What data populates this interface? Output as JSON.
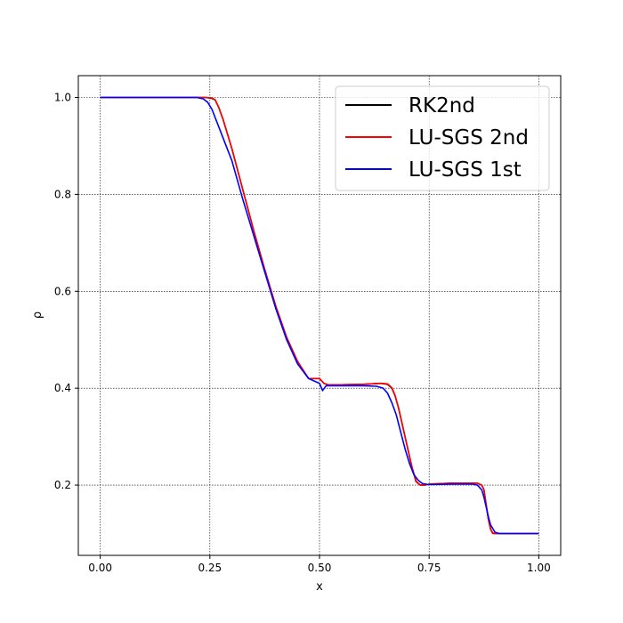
{
  "chart_data": {
    "type": "line",
    "title": "",
    "xlabel": "x",
    "ylabel": "ρ",
    "xlim": [
      -0.05,
      1.05
    ],
    "ylim": [
      0.055,
      1.045
    ],
    "xticks": [
      0.0,
      0.25,
      0.5,
      0.75,
      1.0
    ],
    "xtick_labels": [
      "0.00",
      "0.25",
      "0.50",
      "0.75",
      "1.00"
    ],
    "yticks": [
      0.2,
      0.4,
      0.6,
      0.8,
      1.0
    ],
    "ytick_labels": [
      "0.2",
      "0.4",
      "0.6",
      "0.8",
      "1.0"
    ],
    "grid": true,
    "legend_position": "top-right",
    "series": [
      {
        "name": "RK2nd",
        "color": "#000000",
        "x": [
          0.0,
          0.24,
          0.255,
          0.262,
          0.27,
          0.28,
          0.3,
          0.325,
          0.35,
          0.375,
          0.4,
          0.425,
          0.45,
          0.475,
          0.5,
          0.505,
          0.51,
          0.52,
          0.55,
          0.6,
          0.64,
          0.655,
          0.665,
          0.672,
          0.68,
          0.69,
          0.7,
          0.71,
          0.72,
          0.73,
          0.74,
          0.75,
          0.8,
          0.86,
          0.87,
          0.875,
          0.88,
          0.885,
          0.89,
          0.895,
          0.9,
          0.91,
          1.0
        ],
        "y": [
          1.0,
          1.0,
          0.998,
          0.995,
          0.98,
          0.955,
          0.895,
          0.81,
          0.725,
          0.645,
          0.57,
          0.505,
          0.455,
          0.42,
          0.42,
          0.415,
          0.41,
          0.407,
          0.407,
          0.408,
          0.41,
          0.408,
          0.4,
          0.385,
          0.36,
          0.32,
          0.28,
          0.24,
          0.208,
          0.2,
          0.2,
          0.202,
          0.204,
          0.204,
          0.2,
          0.19,
          0.16,
          0.13,
          0.11,
          0.101,
          0.1,
          0.1,
          0.1
        ]
      },
      {
        "name": "LU-SGS 2nd",
        "color": "#ff0000",
        "x": [
          0.0,
          0.24,
          0.255,
          0.262,
          0.27,
          0.28,
          0.3,
          0.325,
          0.35,
          0.375,
          0.4,
          0.425,
          0.45,
          0.475,
          0.5,
          0.505,
          0.51,
          0.52,
          0.55,
          0.6,
          0.64,
          0.655,
          0.665,
          0.672,
          0.68,
          0.69,
          0.7,
          0.71,
          0.72,
          0.73,
          0.74,
          0.75,
          0.8,
          0.86,
          0.87,
          0.875,
          0.88,
          0.885,
          0.89,
          0.895,
          0.9,
          0.91,
          1.0
        ],
        "y": [
          1.0,
          1.0,
          0.999,
          0.995,
          0.98,
          0.955,
          0.895,
          0.81,
          0.725,
          0.645,
          0.57,
          0.505,
          0.455,
          0.42,
          0.42,
          0.415,
          0.41,
          0.407,
          0.407,
          0.408,
          0.41,
          0.409,
          0.401,
          0.386,
          0.36,
          0.32,
          0.28,
          0.24,
          0.207,
          0.2,
          0.2,
          0.202,
          0.204,
          0.204,
          0.2,
          0.19,
          0.16,
          0.13,
          0.109,
          0.1,
          0.1,
          0.1,
          0.1
        ]
      },
      {
        "name": "LU-SGS 1st",
        "color": "#0000ff",
        "x": [
          0.0,
          0.22,
          0.235,
          0.245,
          0.255,
          0.27,
          0.3,
          0.325,
          0.35,
          0.375,
          0.4,
          0.425,
          0.45,
          0.475,
          0.5,
          0.507,
          0.515,
          0.53,
          0.55,
          0.6,
          0.63,
          0.645,
          0.655,
          0.665,
          0.675,
          0.685,
          0.695,
          0.705,
          0.715,
          0.725,
          0.735,
          0.75,
          0.8,
          0.85,
          0.86,
          0.87,
          0.875,
          0.88,
          0.885,
          0.89,
          0.9,
          0.91,
          1.0
        ],
        "y": [
          1.0,
          1.0,
          0.997,
          0.99,
          0.975,
          0.94,
          0.87,
          0.79,
          0.715,
          0.64,
          0.565,
          0.5,
          0.45,
          0.42,
          0.41,
          0.395,
          0.405,
          0.405,
          0.405,
          0.405,
          0.404,
          0.4,
          0.39,
          0.37,
          0.345,
          0.31,
          0.275,
          0.245,
          0.222,
          0.21,
          0.203,
          0.201,
          0.202,
          0.202,
          0.2,
          0.19,
          0.175,
          0.155,
          0.135,
          0.118,
          0.103,
          0.1,
          0.1
        ]
      }
    ]
  }
}
